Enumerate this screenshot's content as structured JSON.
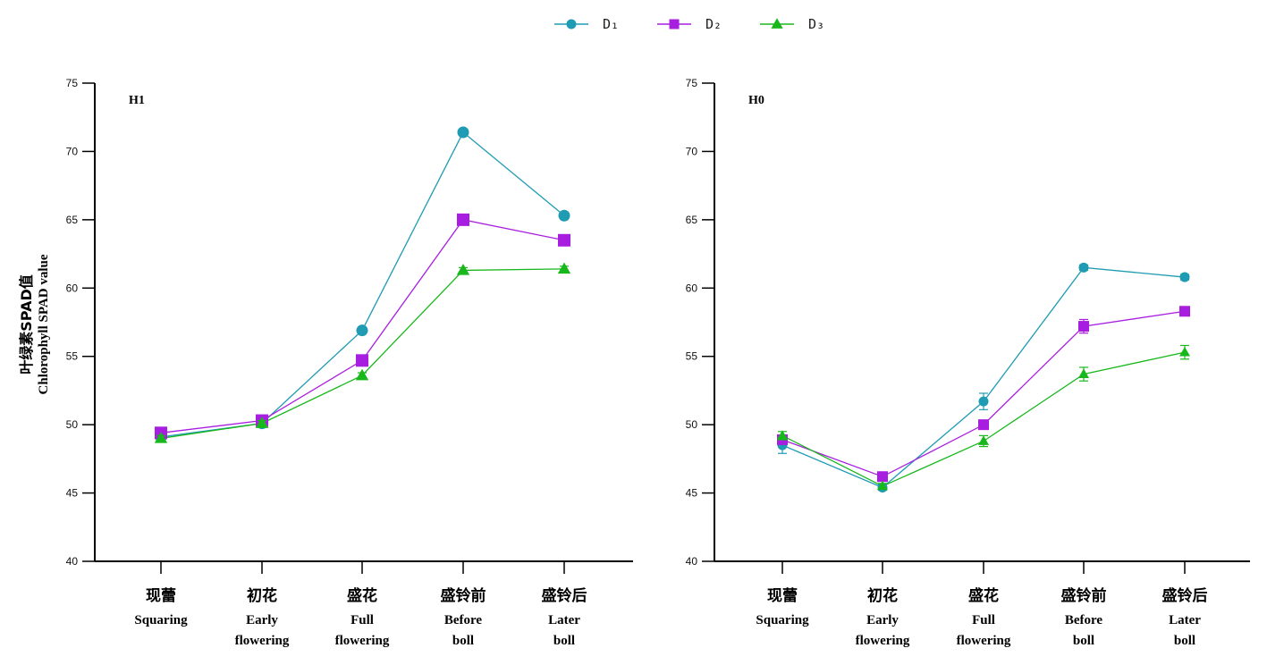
{
  "legend": [
    {
      "name": "D₁",
      "color": "#1f9bb3",
      "marker": "circle"
    },
    {
      "name": "D₂",
      "color": "#a81ee0",
      "marker": "square"
    },
    {
      "name": "D₃",
      "color": "#18b81c",
      "marker": "triangle"
    }
  ],
  "y_axis_label_zh": "叶绿素SPAD值",
  "y_axis_label_en": "Chlorophyll SPAD value",
  "chart_data": [
    {
      "type": "line",
      "panel_label": "H1",
      "categories": [
        {
          "zh": "现蕾",
          "en": [
            "Squaring"
          ]
        },
        {
          "zh": "初花",
          "en": [
            "Early",
            "flowering"
          ]
        },
        {
          "zh": "盛花",
          "en": [
            "Full",
            "flowering"
          ]
        },
        {
          "zh": "盛铃前",
          "en": [
            "Before",
            "boll"
          ]
        },
        {
          "zh": "盛铃后",
          "en": [
            "Later",
            "boll"
          ]
        }
      ],
      "ylim": [
        40,
        75
      ],
      "yticks": [
        40,
        45,
        50,
        55,
        60,
        65,
        70,
        75
      ],
      "grid": false,
      "series": [
        {
          "name": "D₁",
          "values": [
            49.1,
            50.1,
            56.9,
            71.4,
            65.3
          ],
          "errors": [
            0.2,
            0.2,
            0.2,
            0.2,
            0.2
          ]
        },
        {
          "name": "D₂",
          "values": [
            49.4,
            50.3,
            54.7,
            65.0,
            63.5
          ],
          "errors": [
            0.2,
            0.2,
            0.2,
            0.2,
            0.2
          ]
        },
        {
          "name": "D₃",
          "values": [
            49.0,
            50.1,
            53.6,
            61.3,
            61.4
          ],
          "errors": [
            0.2,
            0.2,
            0.2,
            0.2,
            0.2
          ]
        }
      ]
    },
    {
      "type": "line",
      "panel_label": "H0",
      "categories": [
        {
          "zh": "现蕾",
          "en": [
            "Squaring"
          ]
        },
        {
          "zh": "初花",
          "en": [
            "Early",
            "flowering"
          ]
        },
        {
          "zh": "盛花",
          "en": [
            "Full",
            "flowering"
          ]
        },
        {
          "zh": "盛铃前",
          "en": [
            "Before",
            "boll"
          ]
        },
        {
          "zh": "盛铃后",
          "en": [
            "Later",
            "boll"
          ]
        }
      ],
      "ylim": [
        40,
        75
      ],
      "yticks": [
        40,
        45,
        50,
        55,
        60,
        65,
        70,
        75
      ],
      "grid": false,
      "series": [
        {
          "name": "D₁",
          "values": [
            48.5,
            45.4,
            51.7,
            61.5,
            60.8
          ],
          "errors": [
            0.6,
            0.2,
            0.6,
            0.2,
            0.2
          ]
        },
        {
          "name": "D₂",
          "values": [
            48.9,
            46.2,
            50.0,
            57.2,
            58.3
          ],
          "errors": [
            0.3,
            0.2,
            0.3,
            0.5,
            0.2
          ]
        },
        {
          "name": "D₃",
          "values": [
            49.2,
            45.5,
            48.8,
            53.7,
            55.3
          ],
          "errors": [
            0.3,
            0.2,
            0.4,
            0.5,
            0.5
          ]
        }
      ]
    }
  ]
}
